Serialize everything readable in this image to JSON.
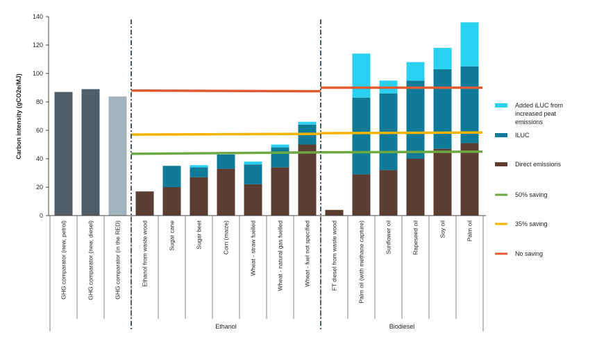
{
  "chart_data": {
    "type": "bar",
    "ylabel": "Carbon intensity (gCO2e/MJ)",
    "ylim": [
      0,
      140
    ],
    "yticks": [
      0,
      20,
      40,
      60,
      80,
      100,
      120,
      140
    ],
    "grid": false,
    "legend_position": "right",
    "categories": [
      "GHG comparator (new, petrol)",
      "GHG comparator (new, diesel)",
      "GHG comparator (in the RED)",
      "Ethanol from waste wood",
      "Sugar cane",
      "Sugar beet",
      "Corn (maize)",
      "Wheat - straw fuelled",
      "Wheat - natural gas fuelled",
      "Wheat - fuel not specified",
      "FT diesel from waste wood",
      "Palm oil (with methane capture)",
      "Sunflower oil",
      "Rapeseed oil",
      "Soy oil",
      "Palm oil"
    ],
    "comparators": {
      "values": [
        87,
        89,
        83.8
      ],
      "colors": [
        "#4f5e68",
        "#4f5e68",
        "#a3b3bd"
      ]
    },
    "series": [
      {
        "name": "Direct emissions",
        "color": "#5b3d31",
        "values": [
          null,
          null,
          null,
          17,
          20,
          27,
          33,
          22,
          34,
          50,
          4,
          29,
          32,
          40,
          47,
          51
        ]
      },
      {
        "name": "ILUC",
        "color": "#0f7b99",
        "values": [
          null,
          null,
          null,
          0,
          15,
          7,
          10,
          14,
          14,
          14,
          0,
          54,
          54,
          55,
          56,
          54
        ]
      },
      {
        "name": "Added iLUC from increased peat emissions",
        "color": "#2ad0f0",
        "values": [
          null,
          null,
          null,
          0,
          0,
          1.5,
          0,
          2,
          2,
          2,
          0,
          31,
          9,
          13,
          15,
          31
        ]
      }
    ],
    "groups": [
      {
        "label": "Ethanol",
        "from": 3,
        "to": 9
      },
      {
        "label": "Biodiesel",
        "from": 10,
        "to": 15
      }
    ],
    "thresholds": [
      {
        "name": "No saving",
        "color": "#e25b30",
        "ethanol": {
          "from": 88,
          "to": 87.5
        },
        "biodiesel": {
          "from": 90,
          "to": 90
        }
      },
      {
        "name": "35% saving",
        "color": "#f3b400",
        "ethanol": {
          "from": 57,
          "to": 57.5
        },
        "biodiesel": {
          "from": 58,
          "to": 58.5
        }
      },
      {
        "name": "50% saving",
        "color": "#6ea843",
        "ethanol": {
          "from": 43.5,
          "to": 44.5
        },
        "biodiesel": {
          "from": 44.5,
          "to": 45
        }
      }
    ],
    "legend": [
      {
        "label": "Added iLUC from increased peat emissions",
        "color": "#2ad0f0",
        "kind": "bar"
      },
      {
        "label": "ILUC",
        "color": "#0f7b99",
        "kind": "bar"
      },
      {
        "label": "Direct emissions",
        "color": "#5b3d31",
        "kind": "bar"
      },
      {
        "label": "50% saving",
        "color": "#6ea843",
        "kind": "line"
      },
      {
        "label": "35% saving",
        "color": "#f3b400",
        "kind": "line"
      },
      {
        "label": "No saving",
        "color": "#e25b30",
        "kind": "line"
      }
    ]
  }
}
